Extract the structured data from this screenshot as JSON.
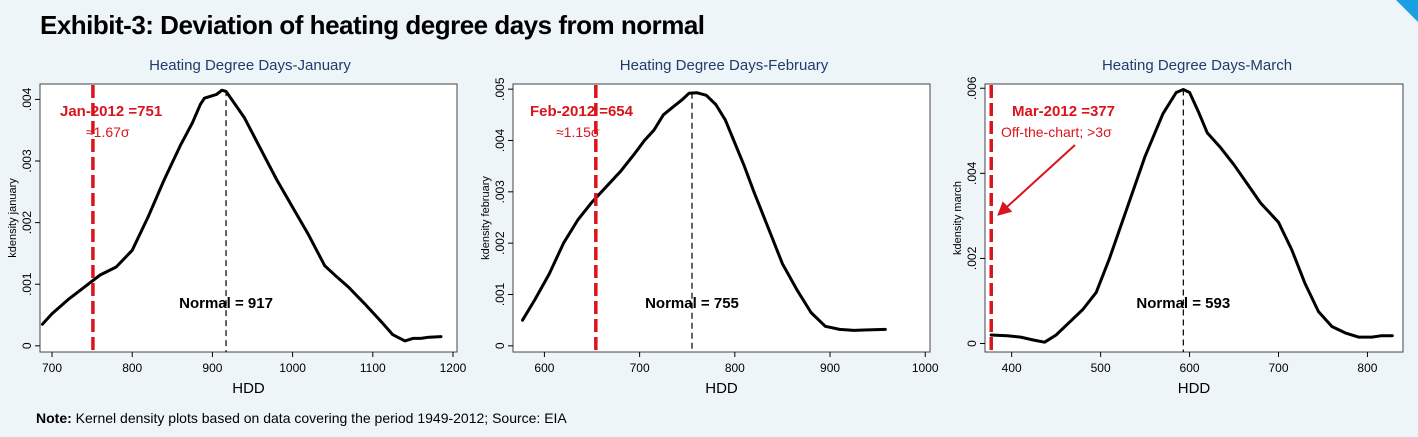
{
  "title": "Exhibit-3: Deviation of heating degree days from normal",
  "note": {
    "label": "Note:",
    "text": "Kernel density plots based on data covering the period 1949-2012; Source: EIA"
  },
  "colors": {
    "background": "#eef5f8",
    "plot_bg": "#ffffff",
    "title_blue": "#1f3c6a",
    "marker_red": "#d9141c",
    "accent_blue": "#1aa0e0"
  },
  "chart_data": [
    {
      "type": "line",
      "title": "Heating Degree Days-January",
      "xlabel": "HDD",
      "ylabel": "kdensity january",
      "xlim": [
        685,
        1205
      ],
      "ylim": [
        -0.0001,
        0.00425
      ],
      "xticks": [
        700,
        800,
        900,
        1000,
        1100,
        1200
      ],
      "yticks": [
        0,
        0.001,
        0.002,
        0.003,
        0.004
      ],
      "ytick_labels": [
        "0",
        ".001",
        ".002",
        ".003",
        ".004"
      ],
      "grid": false,
      "series": [
        {
          "x": [
            688,
            700,
            720,
            740,
            760,
            780,
            800,
            820,
            840,
            860,
            875,
            885,
            890,
            900,
            905,
            912,
            917,
            925,
            940,
            960,
            980,
            1000,
            1020,
            1040,
            1055,
            1070,
            1090,
            1110,
            1125,
            1140,
            1150,
            1160,
            1170,
            1185
          ],
          "y": [
            0.00035,
            0.00052,
            0.00075,
            0.00095,
            0.00115,
            0.00128,
            0.00155,
            0.0021,
            0.0027,
            0.00325,
            0.00362,
            0.00392,
            0.00402,
            0.00406,
            0.00408,
            0.00415,
            0.00413,
            0.00398,
            0.0037,
            0.0032,
            0.0027,
            0.00225,
            0.0018,
            0.0013,
            0.00112,
            0.00095,
            0.00068,
            0.0004,
            0.00018,
            8e-05,
            0.00012,
            0.00012,
            0.00014,
            0.00015
          ]
        }
      ],
      "normal": 917,
      "marker": 751,
      "annotation_title": "Jan-2012 =751",
      "annotation_sigma": "≈1.67σ",
      "normal_label": "Normal = 917"
    },
    {
      "type": "line",
      "title": "Heating Degree Days-February",
      "xlabel": "HDD",
      "ylabel": "kdensity february",
      "xlim": [
        567,
        1005
      ],
      "ylim": [
        -0.00012,
        0.0051
      ],
      "xticks": [
        600,
        700,
        800,
        900,
        1000
      ],
      "yticks": [
        0,
        0.001,
        0.002,
        0.003,
        0.004,
        0.005
      ],
      "ytick_labels": [
        "0",
        ".001",
        ".002",
        ".003",
        ".004",
        ".005"
      ],
      "grid": false,
      "series": [
        {
          "x": [
            577,
            590,
            605,
            620,
            635,
            650,
            665,
            680,
            695,
            705,
            715,
            725,
            735,
            745,
            752,
            760,
            770,
            780,
            790,
            800,
            810,
            820,
            835,
            850,
            865,
            880,
            895,
            910,
            925,
            940,
            958
          ],
          "y": [
            0.0005,
            0.0009,
            0.0014,
            0.002,
            0.00245,
            0.0028,
            0.0031,
            0.0034,
            0.00375,
            0.004,
            0.0042,
            0.0045,
            0.00465,
            0.0048,
            0.00492,
            0.00493,
            0.00488,
            0.0047,
            0.0044,
            0.00395,
            0.0035,
            0.003,
            0.0023,
            0.0016,
            0.0011,
            0.00065,
            0.00038,
            0.00032,
            0.0003,
            0.00031,
            0.00032
          ]
        }
      ],
      "normal": 755,
      "marker": 654,
      "annotation_title": "Feb-2012 =654",
      "annotation_sigma": "≈1.15σ",
      "normal_label": "Normal = 755"
    },
    {
      "type": "line",
      "title": "Heating Degree Days-March",
      "xlabel": "HDD",
      "ylabel": "kdensity march",
      "xlim": [
        370,
        840
      ],
      "ylim": [
        -0.0002,
        0.0061
      ],
      "xticks": [
        400,
        500,
        600,
        700,
        800
      ],
      "yticks": [
        0,
        0.002,
        0.004,
        0.006
      ],
      "ytick_labels": [
        "0",
        ".002",
        ".004",
        ".006"
      ],
      "grid": false,
      "series": [
        {
          "x": [
            377,
            395,
            410,
            425,
            437,
            450,
            465,
            480,
            495,
            510,
            530,
            550,
            570,
            585,
            593,
            600,
            610,
            620,
            635,
            650,
            665,
            680,
            700,
            715,
            730,
            745,
            760,
            775,
            790,
            805,
            815,
            828
          ],
          "y": [
            0.0002,
            0.00018,
            0.00015,
            8e-05,
            3e-05,
            0.0002,
            0.0005,
            0.0008,
            0.0012,
            0.002,
            0.0032,
            0.0044,
            0.0054,
            0.0059,
            0.00597,
            0.0059,
            0.00545,
            0.00495,
            0.0046,
            0.0042,
            0.00375,
            0.0033,
            0.00285,
            0.0022,
            0.0014,
            0.00075,
            0.0004,
            0.00025,
            0.00015,
            0.00015,
            0.00018,
            0.00018
          ]
        }
      ],
      "normal": 593,
      "marker": 377,
      "annotation_title": "Mar-2012 =377",
      "annotation_sigma": "Off-the-chart;  >3σ",
      "normal_label": "Normal = 593",
      "arrow": true
    }
  ]
}
